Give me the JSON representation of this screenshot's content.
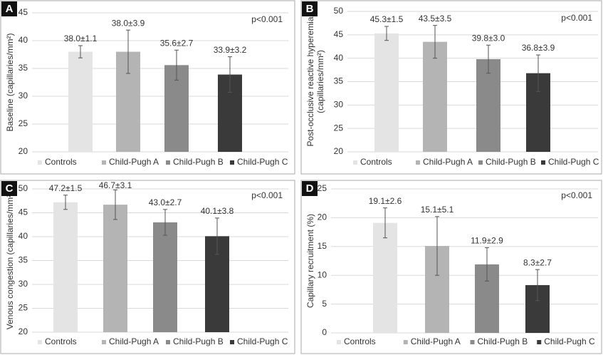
{
  "chart_data": [
    {
      "type": "bar",
      "panel": "A",
      "y_label": [
        "Baseline (capillaries/mm²)"
      ],
      "annotation": "p<0.001",
      "categories": [
        "Controls",
        "Child-Pugh A",
        "Child-Pugh B",
        "Child-Pugh C"
      ],
      "colors": [
        "#e4e4e4",
        "#b4b4b4",
        "#8a8a8a",
        "#3a3a3a"
      ],
      "values": [
        38.0,
        38.0,
        35.6,
        33.9
      ],
      "errors": [
        1.1,
        3.9,
        2.7,
        3.2
      ],
      "value_labels": [
        "38.0±1.1",
        "38.0±3.9",
        "35.6±2.7",
        "33.9±3.2"
      ],
      "ylim": [
        20,
        45
      ],
      "yticks": [
        20,
        25,
        30,
        35,
        40,
        45
      ],
      "grid": true
    },
    {
      "type": "bar",
      "panel": "B",
      "y_label": [
        "Post-occlusive reactive hyperemia",
        "(capillaries/mm²)"
      ],
      "annotation": "p<0.001",
      "categories": [
        "Controls",
        "Child-Pugh A",
        "Child-Pugh B",
        "Child-Pugh C"
      ],
      "colors": [
        "#e4e4e4",
        "#b4b4b4",
        "#8a8a8a",
        "#3a3a3a"
      ],
      "values": [
        45.3,
        43.5,
        39.8,
        36.8
      ],
      "errors": [
        1.5,
        3.5,
        3.0,
        3.9
      ],
      "value_labels": [
        "45.3±1.5",
        "43.5±3.5",
        "39.8±3.0",
        "36.8±3.9"
      ],
      "ylim": [
        20,
        50
      ],
      "yticks": [
        20,
        25,
        30,
        35,
        40,
        45,
        50
      ],
      "grid": true
    },
    {
      "type": "bar",
      "panel": "C",
      "y_label": [
        "Venous congestion (capillaries/mm²)"
      ],
      "annotation": "p<0.001",
      "categories": [
        "Controls",
        "Child-Pugh A",
        "Child-Pugh B",
        "Child-Pugh C"
      ],
      "colors": [
        "#e4e4e4",
        "#b4b4b4",
        "#8a8a8a",
        "#3a3a3a"
      ],
      "values": [
        47.2,
        46.7,
        43.0,
        40.1
      ],
      "errors": [
        1.5,
        3.1,
        2.7,
        3.8
      ],
      "value_labels": [
        "47.2±1.5",
        "46.7±3.1",
        "43.0±2.7",
        "40.1±3.8"
      ],
      "ylim": [
        20,
        50
      ],
      "yticks": [
        20,
        25,
        30,
        35,
        40,
        45,
        50
      ],
      "grid": true
    },
    {
      "type": "bar",
      "panel": "D",
      "y_label": [
        "Capillary recruitment (%)"
      ],
      "annotation": "p<0.001",
      "categories": [
        "Controls",
        "Child-Pugh A",
        "Child-Pugh B",
        "Child-Pugh C"
      ],
      "colors": [
        "#e4e4e4",
        "#b4b4b4",
        "#8a8a8a",
        "#3a3a3a"
      ],
      "values": [
        19.1,
        15.1,
        11.9,
        8.3
      ],
      "errors": [
        2.6,
        5.1,
        2.9,
        2.7
      ],
      "value_labels": [
        "19.1±2.6",
        "15.1±5.1",
        "11.9±2.9",
        "8.3±2.7"
      ],
      "ylim": [
        0,
        25
      ],
      "yticks": [
        0,
        5,
        10,
        15,
        20,
        25
      ],
      "grid": true
    }
  ]
}
